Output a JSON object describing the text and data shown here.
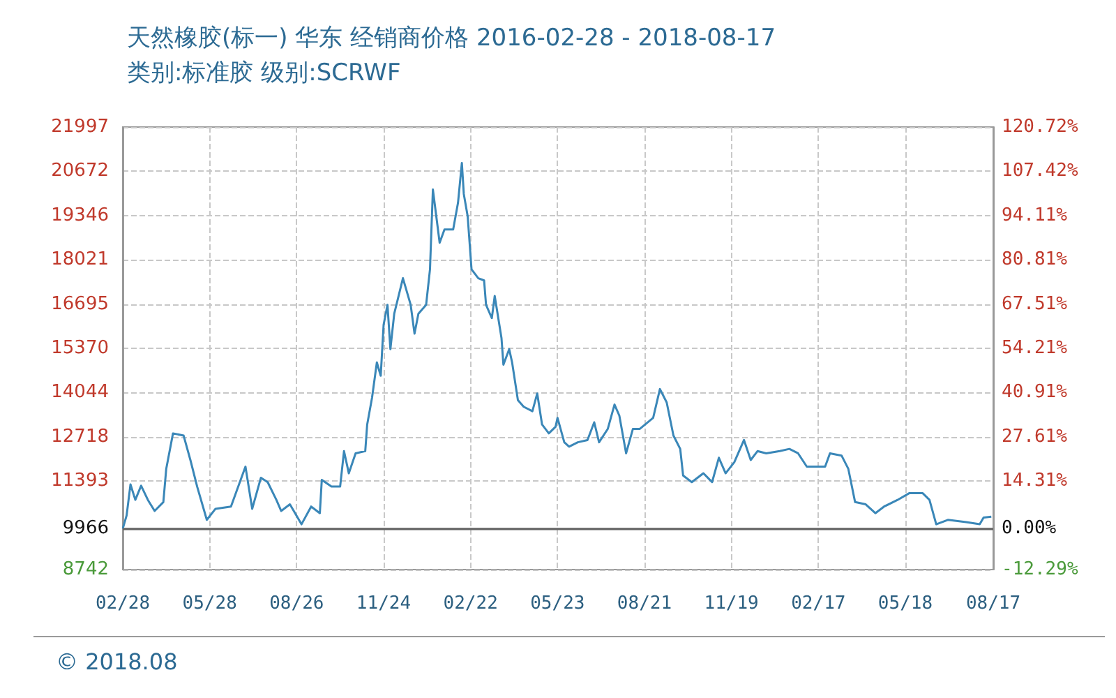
{
  "chart_data": {
    "type": "line",
    "title": "天然橡胶(标一) 华东 经销商价格 2016-02-28 - 2018-08-17",
    "subtitle": "类别:标准胶 级别:SCRWF",
    "annotations": [
      "© 2018.08"
    ],
    "x": [
      "2016-02-28",
      "2016-03-03",
      "2016-03-07",
      "2016-03-12",
      "2016-03-18",
      "2016-03-25",
      "2016-04-01",
      "2016-04-10",
      "2016-04-13",
      "2016-04-20",
      "2016-05-01",
      "2016-05-08",
      "2016-05-15",
      "2016-05-25",
      "2016-06-03",
      "2016-06-19",
      "2016-07-04",
      "2016-07-11",
      "2016-07-20",
      "2016-07-27",
      "2016-08-05",
      "2016-08-10",
      "2016-08-19",
      "2016-08-31",
      "2016-09-10",
      "2016-09-19",
      "2016-09-21",
      "2016-10-01",
      "2016-10-10",
      "2016-10-14",
      "2016-10-19",
      "2016-10-26",
      "2016-11-05",
      "2016-11-07",
      "2016-11-12",
      "2016-11-17",
      "2016-11-21",
      "2016-11-24",
      "2016-11-28",
      "2016-12-01",
      "2016-12-05",
      "2016-12-14",
      "2016-12-22",
      "2016-12-26",
      "2016-12-30",
      "2017-01-07",
      "2017-01-11",
      "2017-01-14",
      "2017-01-21",
      "2017-01-26",
      "2017-02-04",
      "2017-02-09",
      "2017-02-13",
      "2017-02-15",
      "2017-02-19",
      "2017-02-23",
      "2017-03-02",
      "2017-03-08",
      "2017-03-10",
      "2017-03-16",
      "2017-03-19",
      "2017-03-26",
      "2017-03-28",
      "2017-04-03",
      "2017-04-06",
      "2017-04-12",
      "2017-04-18",
      "2017-04-27",
      "2017-05-02",
      "2017-05-07",
      "2017-05-14",
      "2017-05-21",
      "2017-05-23",
      "2017-05-30",
      "2017-06-04",
      "2017-06-13",
      "2017-06-23",
      "2017-06-30",
      "2017-07-05",
      "2017-07-14",
      "2017-07-21",
      "2017-07-26",
      "2017-08-02",
      "2017-08-09",
      "2017-08-16",
      "2017-08-30",
      "2017-09-06",
      "2017-09-13",
      "2017-09-20",
      "2017-09-27",
      "2017-09-30",
      "2017-10-09",
      "2017-10-21",
      "2017-10-30",
      "2017-11-06",
      "2017-11-13",
      "2017-11-22",
      "2017-12-02",
      "2017-12-09",
      "2017-12-16",
      "2017-12-25",
      "2018-01-08",
      "2018-01-18",
      "2018-01-27",
      "2018-02-05",
      "2018-02-24",
      "2018-03-01",
      "2018-03-13",
      "2018-03-20",
      "2018-03-27",
      "2018-04-07",
      "2018-04-17",
      "2018-04-26",
      "2018-05-10",
      "2018-05-22",
      "2018-06-05",
      "2018-06-12",
      "2018-06-19",
      "2018-07-01",
      "2018-07-20",
      "2018-08-03",
      "2018-08-07",
      "2018-08-15"
    ],
    "series": [
      {
        "color": "#3a87b8",
        "values": [
          9966,
          10364,
          11294,
          10829,
          11254,
          10829,
          10497,
          10763,
          11759,
          12821,
          12755,
          12024,
          11228,
          10231,
          10563,
          10630,
          11825,
          10563,
          11493,
          11360,
          10829,
          10497,
          10696,
          10099,
          10630,
          10431,
          11427,
          11228,
          11228,
          12290,
          11626,
          12224,
          12290,
          13087,
          13884,
          14946,
          14548,
          16075,
          16672,
          15344,
          16406,
          17469,
          16672,
          15809,
          16406,
          16672,
          17735,
          20125,
          18531,
          18930,
          18930,
          19727,
          20922,
          19992,
          19328,
          17735,
          17469,
          17403,
          16672,
          16274,
          16938,
          15676,
          14880,
          15344,
          14946,
          13817,
          13618,
          13485,
          14017,
          13087,
          12821,
          13020,
          13286,
          12555,
          12423,
          12555,
          12622,
          13153,
          12555,
          12954,
          13684,
          13352,
          12224,
          12954,
          12954,
          13286,
          14149,
          13750,
          12755,
          12356,
          11559,
          11361,
          11626,
          11361,
          12091,
          11626,
          11958,
          12622,
          12024,
          12290,
          12224,
          12290,
          12356,
          12224,
          11825,
          11825,
          12224,
          12157,
          11759,
          10763,
          10696,
          10431,
          10630,
          10829,
          11029,
          11029,
          10829,
          10099,
          10231,
          10165,
          10099,
          10298,
          10324
        ]
      }
    ],
    "xlim": [
      "2016-02-28",
      "2018-08-17"
    ],
    "xticks": [
      {
        "value": "2016-02-28",
        "label": "02/28"
      },
      {
        "value": "2016-05-28",
        "label": "05/28"
      },
      {
        "value": "2016-08-26",
        "label": "08/26"
      },
      {
        "value": "2016-11-24",
        "label": "11/24"
      },
      {
        "value": "2017-02-22",
        "label": "02/22"
      },
      {
        "value": "2017-05-23",
        "label": "05/23"
      },
      {
        "value": "2017-08-21",
        "label": "08/21"
      },
      {
        "value": "2017-11-19",
        "label": "11/19"
      },
      {
        "value": "2018-02-17",
        "label": "02/17"
      },
      {
        "value": "2018-05-18",
        "label": "05/18"
      },
      {
        "value": "2018-08-17",
        "label": "08/17"
      }
    ],
    "ylim": [
      8742,
      21997
    ],
    "yticks": [
      8742,
      9966,
      11393,
      12718,
      14044,
      15370,
      16695,
      18021,
      19346,
      20672,
      21997
    ],
    "y2lim": [
      -12.29,
      120.72
    ],
    "y2ticks": [
      {
        "value": -12.29,
        "label": "-12.29%"
      },
      {
        "value": 0,
        "label": "0.00%"
      },
      {
        "value": 14.31,
        "label": "14.31%"
      },
      {
        "value": 27.61,
        "label": "27.61%"
      },
      {
        "value": 40.91,
        "label": "40.91%"
      },
      {
        "value": 54.21,
        "label": "54.21%"
      },
      {
        "value": 67.51,
        "label": "67.51%"
      },
      {
        "value": 80.81,
        "label": "80.81%"
      },
      {
        "value": 94.11,
        "label": "94.11%"
      },
      {
        "value": 107.42,
        "label": "107.42%"
      },
      {
        "value": 120.72,
        "label": "120.72%"
      }
    ],
    "ref_lines": [
      {
        "axis": "y",
        "value": 9966,
        "color": "#666666"
      }
    ],
    "grid": true,
    "marker": "none",
    "line_style": "solid"
  }
}
